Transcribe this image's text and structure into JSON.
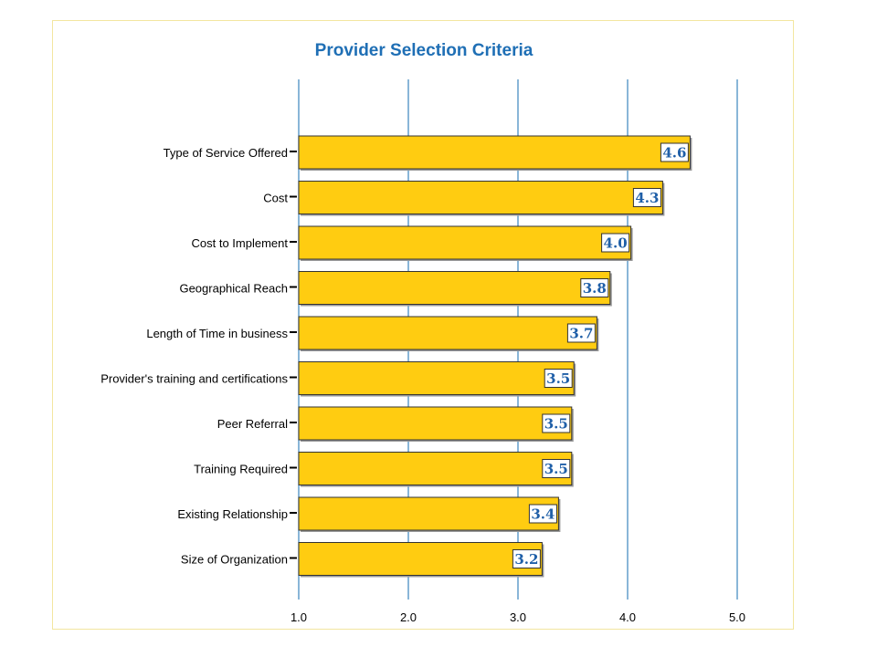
{
  "colors": {
    "bar_fill": "#ffcc11",
    "bar_stroke": "#333333",
    "bar_shadow": "#9a9a9a",
    "grid": "#4a8fc4",
    "title": "#1f6fb5",
    "data_label": "#1f5fa8",
    "frame_border": "#f3e6a0"
  },
  "chart_data": {
    "type": "bar",
    "orientation": "horizontal",
    "title": "Provider Selection Criteria",
    "xlabel": "",
    "ylabel": "",
    "categories": [
      "Type of Service Offered",
      "Cost",
      "Cost to Implement",
      "Geographical Reach",
      "Length of Time in business",
      "Provider's training and certifications",
      "Peer Referral",
      "Training Required",
      "Existing Relationship",
      "Size of Organization"
    ],
    "values": [
      4.57,
      4.32,
      4.03,
      3.84,
      3.72,
      3.51,
      3.49,
      3.49,
      3.37,
      3.22
    ],
    "data_labels": [
      "4.6",
      "4.3",
      "4.0",
      "3.8",
      "3.7",
      "3.5",
      "3.5",
      "3.5",
      "3.4",
      "3.2"
    ],
    "xlim": [
      1.0,
      5.0
    ],
    "ticks": [
      1.0,
      2.0,
      3.0,
      4.0,
      5.0
    ],
    "tick_labels": [
      "1.0",
      "2.0",
      "3.0",
      "4.0",
      "5.0"
    ],
    "grid": true,
    "legend": "none"
  }
}
